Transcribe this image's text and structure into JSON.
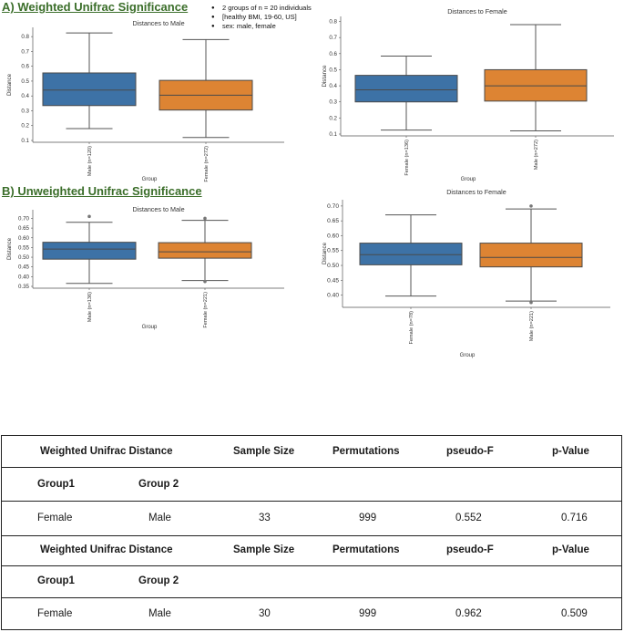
{
  "section_a": "A) Weighted Unifrac Significance",
  "section_b": "B) Unweighted Unifrac Significance",
  "notes": [
    "2 groups of n = 20 individuals",
    "[healthy BMI, 19-60, US]",
    "sex: male, female"
  ],
  "colors": {
    "blue": "#3d72a6",
    "orange": "#dd8433",
    "title_green": "#3b6e2a"
  },
  "chart_data": [
    {
      "type": "box",
      "title": "Distances to Male",
      "xlabel": "Group",
      "ylabel": "Distance",
      "ylim": [
        0.1,
        0.85
      ],
      "yticks": [
        0.1,
        0.2,
        0.3,
        0.4,
        0.5,
        0.6,
        0.7,
        0.8
      ],
      "ytick_labels": [
        "0.1",
        "0.2",
        "0.3",
        "0.4",
        "0.5",
        "0.6",
        "0.7",
        "0.8"
      ],
      "categories": [
        "Male (n=120)",
        "Female (n=272)"
      ],
      "series": [
        {
          "name": "Male (n=120)",
          "color": "#3d72a6",
          "whislo": 0.18,
          "q1": 0.335,
          "med": 0.44,
          "q3": 0.555,
          "whishi": 0.825,
          "fliers": []
        },
        {
          "name": "Female (n=272)",
          "color": "#dd8433",
          "whislo": 0.12,
          "q1": 0.305,
          "med": 0.405,
          "q3": 0.505,
          "whishi": 0.78,
          "fliers": []
        }
      ]
    },
    {
      "type": "box",
      "title": "Distances to Female",
      "xlabel": "Group",
      "ylabel": "Distance",
      "ylim": [
        0.1,
        0.82
      ],
      "yticks": [
        0.1,
        0.2,
        0.3,
        0.4,
        0.5,
        0.6,
        0.7,
        0.8
      ],
      "ytick_labels": [
        "0.1",
        "0.2",
        "0.3",
        "0.4",
        "0.5",
        "0.6",
        "0.7",
        "0.8"
      ],
      "categories": [
        "Female (n=136)",
        "Male (n=272)"
      ],
      "series": [
        {
          "name": "Female (n=136)",
          "color": "#3d72a6",
          "whislo": 0.125,
          "q1": 0.3,
          "med": 0.375,
          "q3": 0.465,
          "whishi": 0.585,
          "fliers": []
        },
        {
          "name": "Male (n=272)",
          "color": "#dd8433",
          "whislo": 0.12,
          "q1": 0.305,
          "med": 0.4,
          "q3": 0.5,
          "whishi": 0.78,
          "fliers": []
        }
      ]
    },
    {
      "type": "box",
      "title": "Distances to Male",
      "xlabel": "Group",
      "ylabel": "Distance",
      "ylim": [
        0.35,
        0.735
      ],
      "yticks": [
        0.35,
        0.4,
        0.45,
        0.5,
        0.55,
        0.6,
        0.65,
        0.7
      ],
      "ytick_labels": [
        "0.35",
        "0.40",
        "0.45",
        "0.50",
        "0.55",
        "0.60",
        "0.65",
        "0.70"
      ],
      "categories": [
        "Male (n=136)",
        "Female (n=221)"
      ],
      "series": [
        {
          "name": "Male (n=136)",
          "color": "#3d72a6",
          "whislo": 0.365,
          "q1": 0.49,
          "med": 0.542,
          "q3": 0.577,
          "whishi": 0.68,
          "fliers": [
            0.71
          ]
        },
        {
          "name": "Female (n=221)",
          "color": "#dd8433",
          "whislo": 0.38,
          "q1": 0.495,
          "med": 0.528,
          "q3": 0.575,
          "whishi": 0.69,
          "fliers": [
            0.7,
            0.375
          ]
        }
      ]
    },
    {
      "type": "box",
      "title": "Distances to Female",
      "xlabel": "Group",
      "ylabel": "Distance",
      "ylim": [
        0.365,
        0.715
      ],
      "yticks": [
        0.4,
        0.45,
        0.5,
        0.55,
        0.6,
        0.65,
        0.7
      ],
      "ytick_labels": [
        "0.40",
        "0.45",
        "0.50",
        "0.55",
        "0.60",
        "0.65",
        "0.70"
      ],
      "categories": [
        "Female (n=78)",
        "Male (n=221)"
      ],
      "series": [
        {
          "name": "Female (n=78)",
          "color": "#3d72a6",
          "whislo": 0.397,
          "q1": 0.502,
          "med": 0.536,
          "q3": 0.575,
          "whishi": 0.67,
          "fliers": []
        },
        {
          "name": "Male (n=221)",
          "color": "#dd8433",
          "whislo": 0.38,
          "q1": 0.495,
          "med": 0.527,
          "q3": 0.575,
          "whishi": 0.69,
          "fliers": [
            0.7,
            0.375
          ]
        }
      ]
    }
  ],
  "table": {
    "block1": {
      "header": {
        "title": "Weighted Unifrac Distance",
        "sample_size": "Sample Size",
        "permutations": "Permutations",
        "pseudo_f": "pseudo-F",
        "p_value": "p-Value"
      },
      "group_labels": {
        "g1": "Group1",
        "g2": "Group 2"
      },
      "row": {
        "g1": "Female",
        "g2": "Male",
        "sample_size": "33",
        "permutations": "999",
        "pseudo_f": "0.552",
        "p_value": "0.716"
      }
    },
    "block2": {
      "header": {
        "title": "Weighted Unifrac Distance",
        "sample_size": "Sample Size",
        "permutations": "Permutations",
        "pseudo_f": "pseudo-F",
        "p_value": "p-Value"
      },
      "group_labels": {
        "g1": "Group1",
        "g2": "Group 2"
      },
      "row": {
        "g1": "Female",
        "g2": "Male",
        "sample_size": "30",
        "permutations": "999",
        "pseudo_f": "0.962",
        "p_value": "0.509"
      }
    }
  }
}
